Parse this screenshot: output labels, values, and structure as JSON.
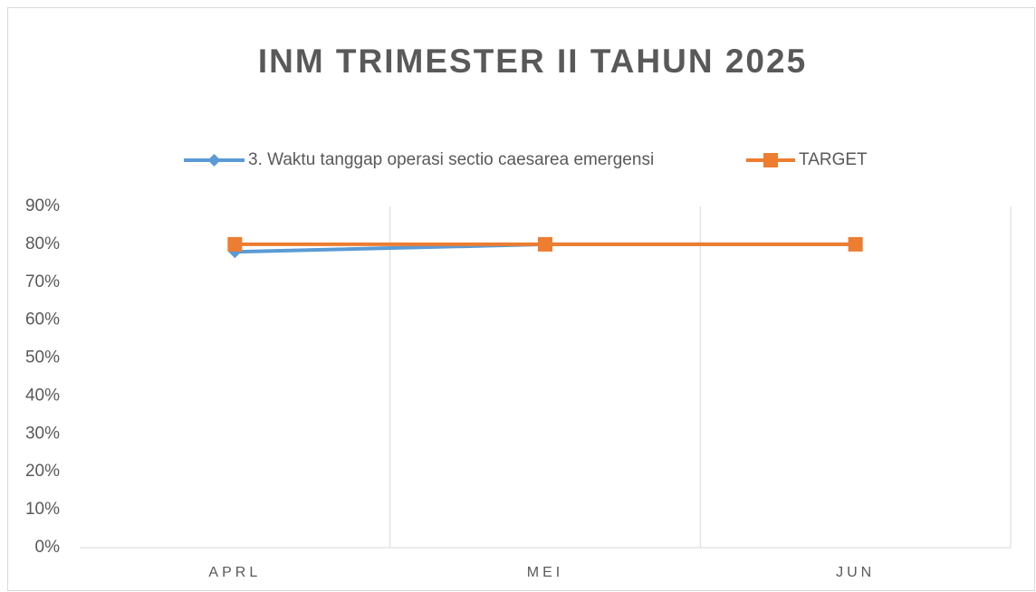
{
  "chart_data": {
    "type": "line",
    "title": "INM TRIMESTER II TAHUN 2025",
    "categories": [
      "APRL",
      "MEI",
      "JUN"
    ],
    "series": [
      {
        "name": "3. Waktu tanggap operasi sectio caesarea emergensi",
        "color": "#5b9bd5",
        "marker": "diamond",
        "values": [
          78,
          80,
          80
        ]
      },
      {
        "name": "TARGET",
        "color": "#ed7d31",
        "marker": "square",
        "values": [
          80,
          80,
          80
        ]
      }
    ],
    "ylim": [
      0,
      90
    ],
    "yticks": [
      {
        "value": 0,
        "label": "0%"
      },
      {
        "value": 10,
        "label": "10%"
      },
      {
        "value": 20,
        "label": "20%"
      },
      {
        "value": 30,
        "label": "30%"
      },
      {
        "value": 40,
        "label": "40%"
      },
      {
        "value": 50,
        "label": "50%"
      },
      {
        "value": 60,
        "label": "60%"
      },
      {
        "value": 70,
        "label": "70%"
      },
      {
        "value": 80,
        "label": "80%"
      },
      {
        "value": 90,
        "label": "90%"
      }
    ],
    "legend": "top"
  }
}
